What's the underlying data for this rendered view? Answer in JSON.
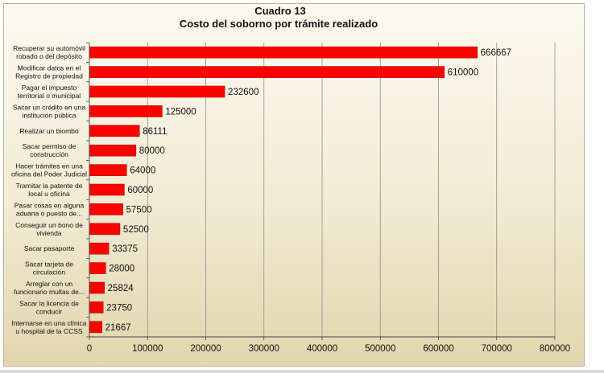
{
  "chart_data": {
    "type": "bar",
    "orientation": "horizontal",
    "title": "Cuadro 13",
    "subtitle": "Costo del soborno por trámite realizado",
    "categories": [
      [
        "Recuperar su automóvil",
        "robado o del depósito"
      ],
      [
        "Modificar datos en el",
        "Registro de propiedad"
      ],
      [
        "Pagar el impuesto",
        "territorial o municipal"
      ],
      [
        "Sacar un crédito en una",
        "institución pública"
      ],
      [
        "Realizar un biombo"
      ],
      [
        "Sacar permiso de",
        "construcción"
      ],
      [
        "Hacer trámites en una",
        "oficina del Poder Judicial"
      ],
      [
        "Tramitar la patente de",
        "local u oficina"
      ],
      [
        "Pasar cosas en alguna",
        "aduana o puesto de..."
      ],
      [
        "Conseguir un bono de",
        "vivienda"
      ],
      [
        "Sacar pasaporte"
      ],
      [
        "Sacar tarjeta de",
        "circulación"
      ],
      [
        "Arreglar con un",
        "funcionario multas de..."
      ],
      [
        "Sacar la licencia de",
        "conducir"
      ],
      [
        "Internarse en una clínica",
        "u hospital de la CCSS"
      ]
    ],
    "values": [
      666667,
      610000,
      232600,
      125000,
      86111,
      80000,
      64000,
      60000,
      57500,
      52500,
      33375,
      28000,
      25824,
      23750,
      21667
    ],
    "xlim": [
      0,
      800000
    ],
    "xticks": [
      0,
      100000,
      200000,
      300000,
      400000,
      500000,
      600000,
      700000,
      800000
    ],
    "grid": "vertical",
    "legend": "none",
    "bar_color": "#ff0000",
    "bar_edge_color": "#c00000"
  }
}
